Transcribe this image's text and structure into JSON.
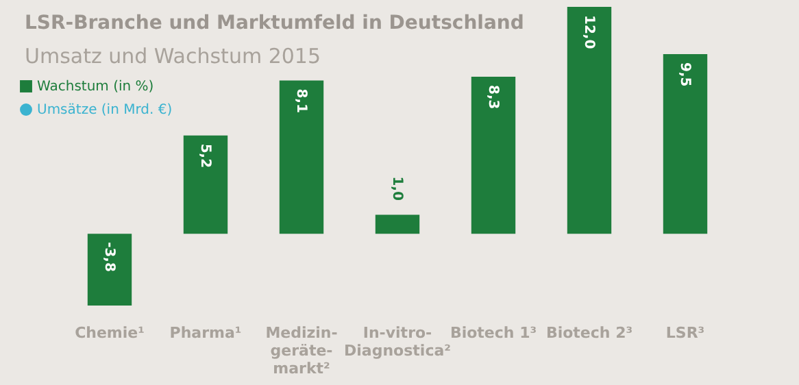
{
  "chart_data": {
    "type": "bar",
    "title": "LSR-Branche und Marktumfeld in Deutschland",
    "subtitle": "Umsatz und Wachstum 2015",
    "categories": [
      "Chemie¹",
      "Pharma¹",
      "Medizin-\ngeräte-\nmarkt²",
      "In-vitro-\nDiagnostica²",
      "Biotech 1³",
      "Biotech 2³",
      "LSR³"
    ],
    "series": [
      {
        "name": "Wachstum (in %)",
        "color": "#1e7d3c",
        "values": [
          -3.8,
          5.2,
          8.1,
          1.0,
          8.3,
          12.0,
          9.5
        ],
        "value_labels": [
          "-3,8",
          "5,2",
          "8,1",
          "1,0",
          "8,3",
          "12,0",
          "9,5"
        ]
      },
      {
        "name": "Umsätze (in Mrd. €)",
        "color": "#3bb3d0",
        "values": [
          null,
          null,
          null,
          null,
          null,
          null,
          null
        ]
      }
    ],
    "legend": "top left"
  }
}
